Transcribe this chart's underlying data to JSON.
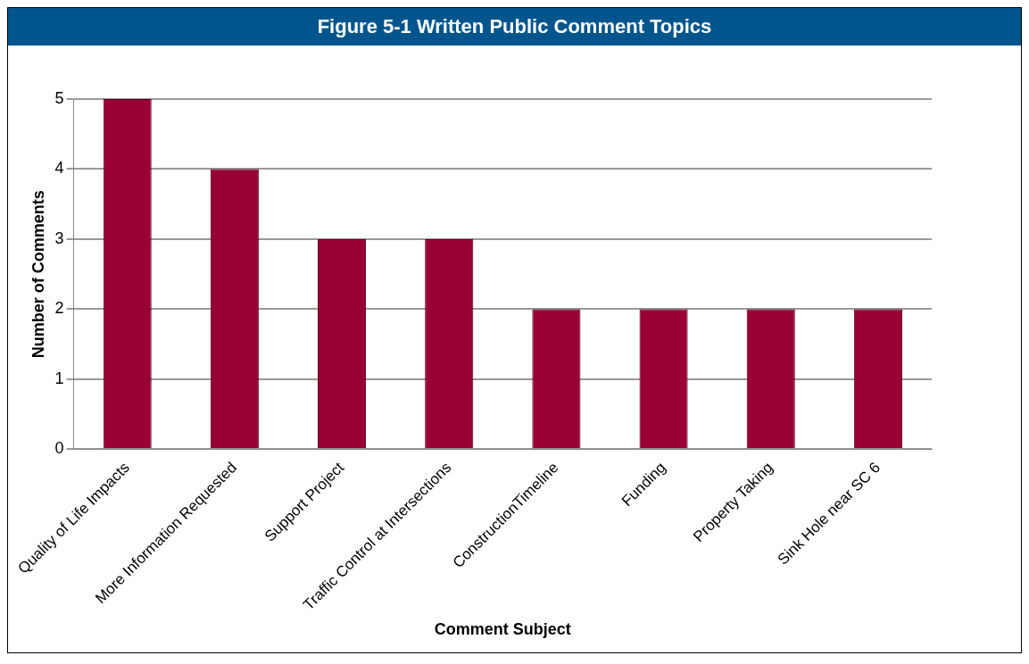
{
  "chart_data": {
    "type": "bar",
    "title": "Figure 5-1 Written Public Comment Topics",
    "xlabel": "Comment Subject",
    "ylabel": "Number of Comments",
    "categories": [
      "Quality of Life Impacts",
      "More Information Requested",
      "Support Project",
      "Traffic Control at Intersections",
      "ConstructionTimeline",
      "Funding",
      "Property Taking",
      "Sink Hole near SC 6"
    ],
    "values": [
      5,
      4,
      3,
      3,
      2,
      2,
      2,
      2
    ],
    "color": "#990033",
    "ylim": [
      0,
      5
    ],
    "yticks": [
      0,
      1,
      2,
      3,
      4,
      5
    ],
    "grid": "y",
    "legend": false
  }
}
